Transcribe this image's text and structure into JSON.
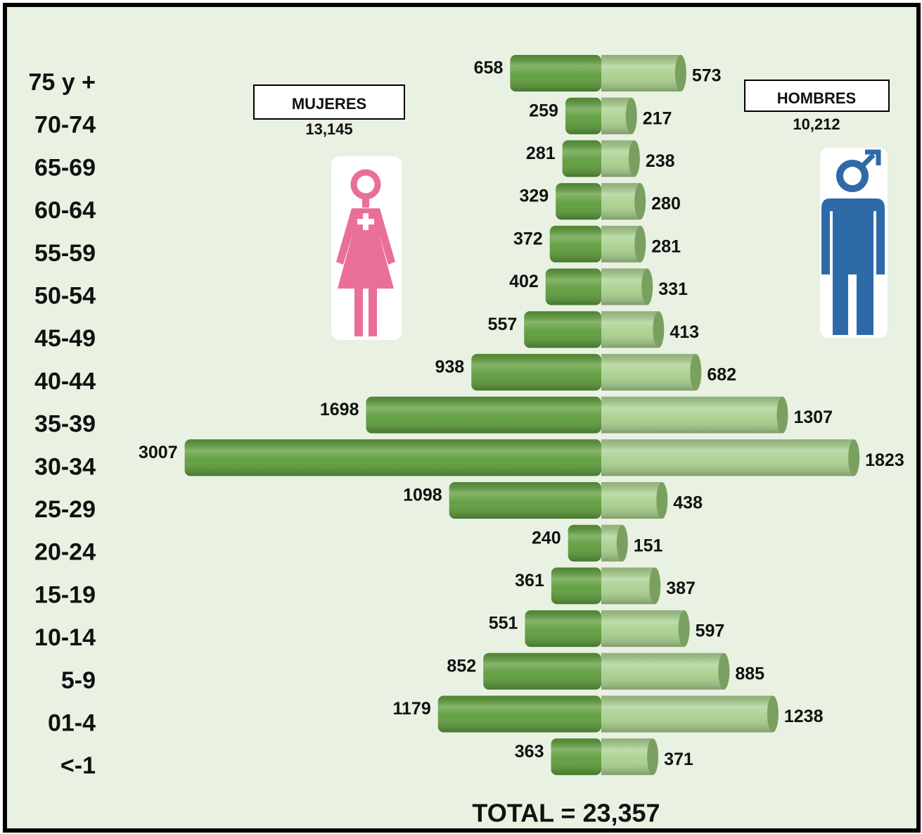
{
  "chart_data": {
    "type": "pyramid",
    "annotation": "TOTAL = 23,357",
    "categories": [
      "75 y +",
      "70-74",
      "65-69",
      "60-64",
      "55-59",
      "50-54",
      "45-49",
      "40-44",
      "35-39",
      "30-34",
      "25-29",
      "20-24",
      "15-19",
      "10-14",
      "5-9",
      "01-4",
      "<-1"
    ],
    "series": [
      {
        "name": "MUJERES",
        "total_label": "13,145",
        "color": "#5c9c3a",
        "values": [
          658,
          259,
          281,
          329,
          372,
          402,
          557,
          938,
          1698,
          3007,
          1098,
          240,
          361,
          551,
          852,
          1179,
          363
        ]
      },
      {
        "name": "HOMBRES",
        "total_label": "10,212",
        "color": "#a9d08e",
        "values": [
          573,
          217,
          238,
          280,
          281,
          331,
          413,
          682,
          1307,
          1823,
          438,
          151,
          387,
          597,
          885,
          1238,
          371
        ]
      }
    ]
  }
}
